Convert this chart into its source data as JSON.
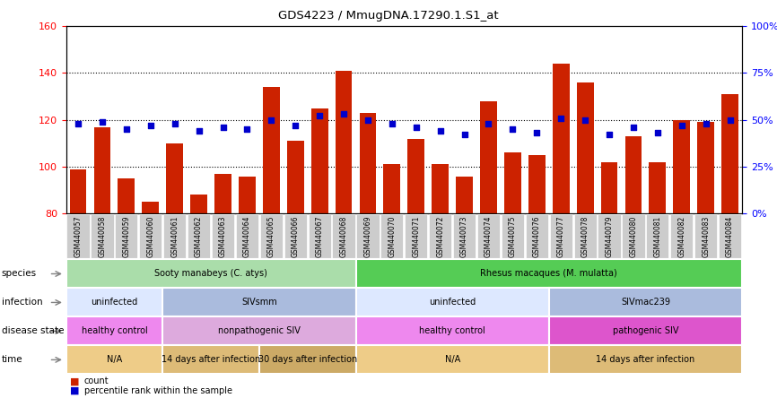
{
  "title": "GDS4223 / MmugDNA.17290.1.S1_at",
  "samples": [
    "GSM440057",
    "GSM440058",
    "GSM440059",
    "GSM440060",
    "GSM440061",
    "GSM440062",
    "GSM440063",
    "GSM440064",
    "GSM440065",
    "GSM440066",
    "GSM440067",
    "GSM440068",
    "GSM440069",
    "GSM440070",
    "GSM440071",
    "GSM440072",
    "GSM440073",
    "GSM440074",
    "GSM440075",
    "GSM440076",
    "GSM440077",
    "GSM440078",
    "GSM440079",
    "GSM440080",
    "GSM440081",
    "GSM440082",
    "GSM440083",
    "GSM440084"
  ],
  "counts": [
    99,
    117,
    95,
    85,
    110,
    88,
    97,
    96,
    134,
    111,
    125,
    141,
    123,
    101,
    112,
    101,
    96,
    128,
    106,
    105,
    144,
    136,
    102,
    113,
    102,
    120,
    119,
    131
  ],
  "percentile": [
    48,
    49,
    45,
    47,
    48,
    44,
    46,
    45,
    50,
    47,
    52,
    53,
    50,
    48,
    46,
    44,
    42,
    48,
    45,
    43,
    51,
    50,
    42,
    46,
    43,
    47,
    48,
    50
  ],
  "bar_color": "#cc2200",
  "dot_color": "#0000cc",
  "ylim_left": [
    80,
    160
  ],
  "ylim_right": [
    0,
    100
  ],
  "yticks_left": [
    80,
    100,
    120,
    140,
    160
  ],
  "yticks_right": [
    0,
    25,
    50,
    75,
    100
  ],
  "grid_lines": [
    100,
    120,
    140
  ],
  "species_groups": [
    {
      "label": "Sooty manabeys (C. atys)",
      "start": 0,
      "end": 12,
      "color": "#aaddaa"
    },
    {
      "label": "Rhesus macaques (M. mulatta)",
      "start": 12,
      "end": 28,
      "color": "#55cc55"
    }
  ],
  "infection_groups": [
    {
      "label": "uninfected",
      "start": 0,
      "end": 4,
      "color": "#dde8ff"
    },
    {
      "label": "SIVsmm",
      "start": 4,
      "end": 12,
      "color": "#aabbdd"
    },
    {
      "label": "uninfected",
      "start": 12,
      "end": 20,
      "color": "#dde8ff"
    },
    {
      "label": "SIVmac239",
      "start": 20,
      "end": 28,
      "color": "#aabbdd"
    }
  ],
  "disease_groups": [
    {
      "label": "healthy control",
      "start": 0,
      "end": 4,
      "color": "#ee88ee"
    },
    {
      "label": "nonpathogenic SIV",
      "start": 4,
      "end": 12,
      "color": "#ddaadd"
    },
    {
      "label": "healthy control",
      "start": 12,
      "end": 20,
      "color": "#ee88ee"
    },
    {
      "label": "pathogenic SIV",
      "start": 20,
      "end": 28,
      "color": "#dd55cc"
    }
  ],
  "time_groups": [
    {
      "label": "N/A",
      "start": 0,
      "end": 4,
      "color": "#eecc88"
    },
    {
      "label": "14 days after infection",
      "start": 4,
      "end": 8,
      "color": "#ddbb77"
    },
    {
      "label": "30 days after infection",
      "start": 8,
      "end": 12,
      "color": "#ccaa66"
    },
    {
      "label": "N/A",
      "start": 12,
      "end": 20,
      "color": "#eecc88"
    },
    {
      "label": "14 days after infection",
      "start": 20,
      "end": 28,
      "color": "#ddbb77"
    }
  ],
  "row_labels": [
    "species",
    "infection",
    "disease state",
    "time"
  ],
  "background_color": "#ffffff",
  "xtick_bg": "#cccccc",
  "chart_facecolor": "#ffffff"
}
